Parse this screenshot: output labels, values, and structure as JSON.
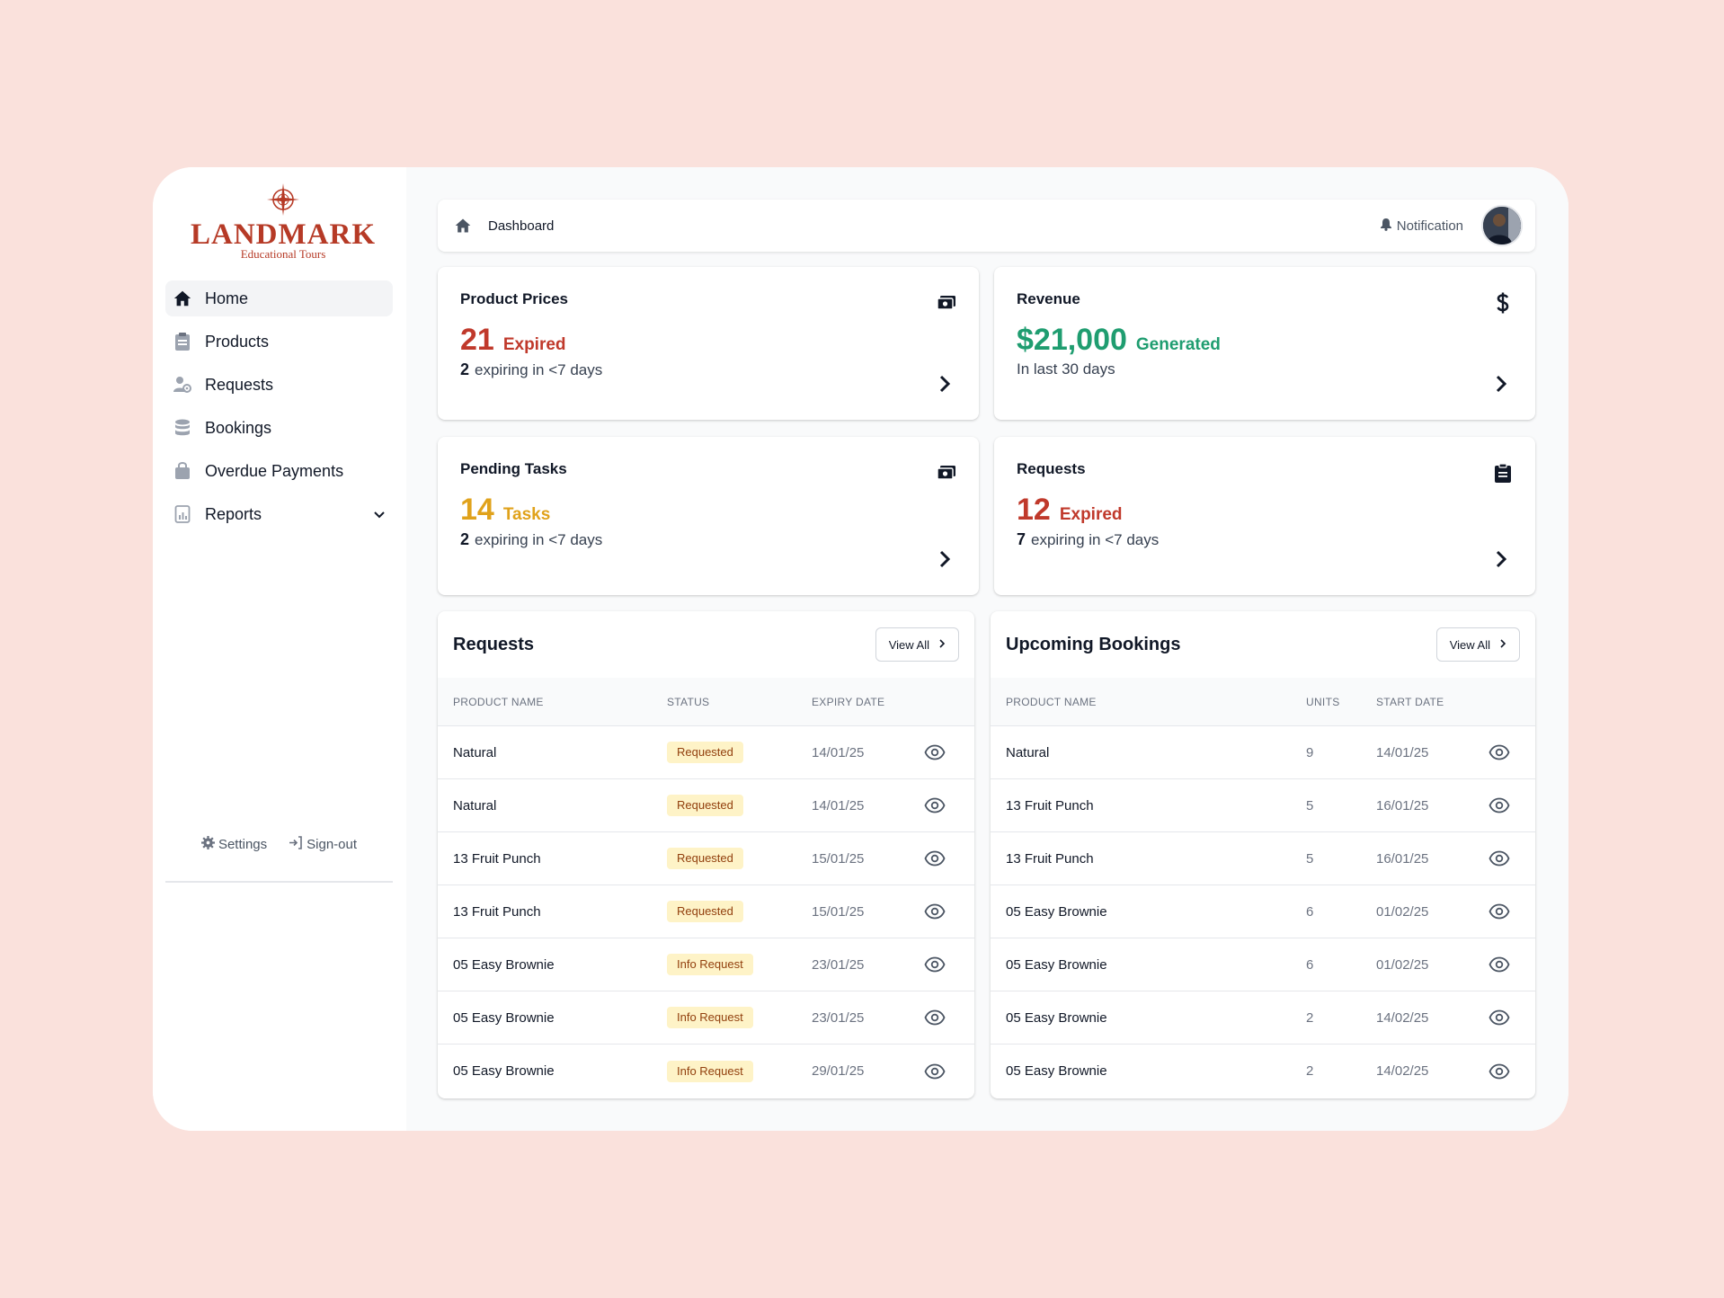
{
  "brand": {
    "name": "LANDMARK",
    "tagline": "Educational Tours",
    "color": "#b63a26"
  },
  "sidebar": {
    "items": [
      {
        "label": "Home",
        "icon": "home-icon",
        "active": true
      },
      {
        "label": "Products",
        "icon": "clipboard-icon"
      },
      {
        "label": "Requests",
        "icon": "user-gear-icon"
      },
      {
        "label": "Bookings",
        "icon": "database-icon"
      },
      {
        "label": "Overdue Payments",
        "icon": "bag-icon"
      },
      {
        "label": "Reports",
        "icon": "report-icon",
        "expandable": true
      }
    ],
    "settings_label": "Settings",
    "signout_label": "Sign-out"
  },
  "topbar": {
    "breadcrumb": "Dashboard",
    "notification_label": "Notification"
  },
  "stats": {
    "product_prices": {
      "title": "Product Prices",
      "value": "21",
      "word": "Expired",
      "sub_count": "2",
      "sub_text": "expiring in <7 days",
      "icon": "cash-icon"
    },
    "revenue": {
      "title": "Revenue",
      "value": "$21,000",
      "word": "Generated",
      "sub_text": "In last 30 days",
      "icon": "dollar-icon"
    },
    "pending_tasks": {
      "title": "Pending Tasks",
      "value": "14",
      "word": "Tasks",
      "sub_count": "2",
      "sub_text": "expiring in <7 days",
      "icon": "cash-icon"
    },
    "requests": {
      "title": "Requests",
      "value": "12",
      "word": "Expired",
      "sub_count": "7",
      "sub_text": "expiring in <7 days",
      "icon": "clipboard-icon"
    }
  },
  "requests_table": {
    "title": "Requests",
    "view_all": "View All",
    "headers": [
      "PRODUCT NAME",
      "STATUS",
      "EXPIRY DATE"
    ],
    "rows": [
      {
        "name": "Natural",
        "status": "Requested",
        "date": "14/01/25"
      },
      {
        "name": "Natural",
        "status": "Requested",
        "date": "14/01/25"
      },
      {
        "name": "13 Fruit Punch",
        "status": "Requested",
        "date": "15/01/25"
      },
      {
        "name": "13 Fruit Punch",
        "status": "Requested",
        "date": "15/01/25"
      },
      {
        "name": "05 Easy Brownie",
        "status": "Info Request",
        "date": "23/01/25"
      },
      {
        "name": "05 Easy Brownie",
        "status": "Info Request",
        "date": "23/01/25"
      },
      {
        "name": "05 Easy Brownie",
        "status": "Info Request",
        "date": "29/01/25"
      }
    ]
  },
  "bookings_table": {
    "title": "Upcoming Bookings",
    "view_all": "View All",
    "headers": [
      "PRODUCT NAME",
      "UNITS",
      "START DATE"
    ],
    "rows": [
      {
        "name": "Natural",
        "units": "9",
        "date": "14/01/25"
      },
      {
        "name": "13 Fruit Punch",
        "units": "5",
        "date": "16/01/25"
      },
      {
        "name": "13 Fruit Punch",
        "units": "5",
        "date": "16/01/25"
      },
      {
        "name": "05 Easy Brownie",
        "units": "6",
        "date": "01/02/25"
      },
      {
        "name": "05 Easy Brownie",
        "units": "6",
        "date": "01/02/25"
      },
      {
        "name": "05 Easy Brownie",
        "units": "2",
        "date": "14/02/25"
      },
      {
        "name": "05 Easy Brownie",
        "units": "2",
        "date": "14/02/25"
      }
    ]
  },
  "colors": {
    "background": "#fae1dc",
    "red": "#c0392b",
    "green": "#1f9d70",
    "amber": "#e0a21b",
    "badge_bg": "#fef3c7"
  }
}
